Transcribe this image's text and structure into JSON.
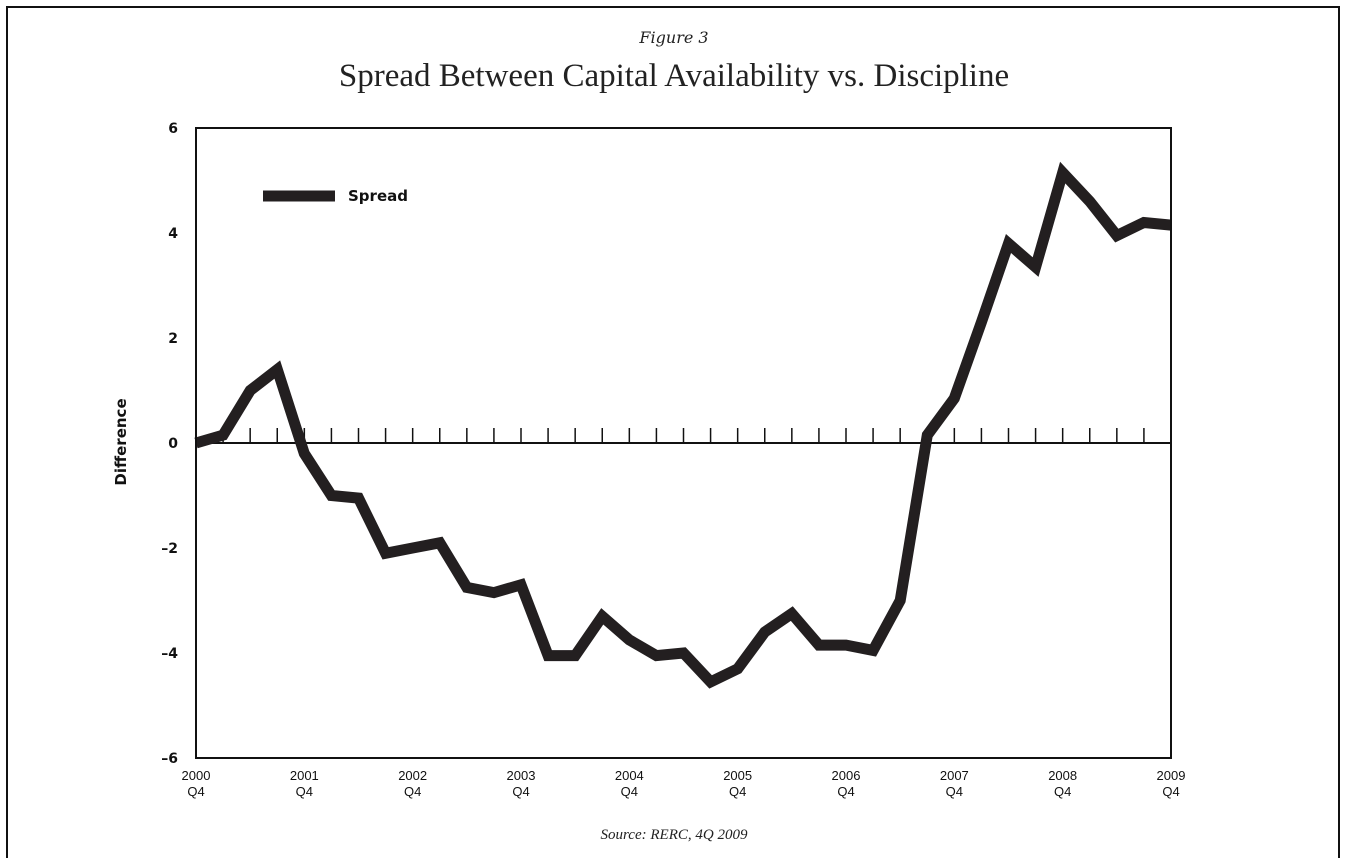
{
  "figure_label": "Figure 3",
  "source": "Source: RERC, 4Q 2009",
  "chart_data": {
    "type": "line",
    "title": "Spread Between Capital Availability vs. Discipline",
    "xlabel": "",
    "ylabel": "Difference",
    "ylim": [
      -6,
      6
    ],
    "y_ticks": [
      {
        "value": 6,
        "label": "6"
      },
      {
        "value": 4,
        "label": "4"
      },
      {
        "value": 2,
        "label": "2"
      },
      {
        "value": 0,
        "label": "0"
      },
      {
        "value": -2,
        "label": "–2"
      },
      {
        "value": -4,
        "label": "–4"
      },
      {
        "value": -6,
        "label": "–6"
      }
    ],
    "x_range": [
      "2000 Q4",
      "2009 Q4"
    ],
    "x_ticks": [
      {
        "year": "2000",
        "quarter": "Q4"
      },
      {
        "year": "2001",
        "quarter": "Q4"
      },
      {
        "year": "2002",
        "quarter": "Q4"
      },
      {
        "year": "2003",
        "quarter": "Q4"
      },
      {
        "year": "2004",
        "quarter": "Q4"
      },
      {
        "year": "2005",
        "quarter": "Q4"
      },
      {
        "year": "2006",
        "quarter": "Q4"
      },
      {
        "year": "2007",
        "quarter": "Q4"
      },
      {
        "year": "2008",
        "quarter": "Q4"
      },
      {
        "year": "2009",
        "quarter": "Q4"
      }
    ],
    "legend": {
      "placement": "top-left",
      "entries": [
        "Spread"
      ]
    },
    "grid": false,
    "line_color": "#231f20",
    "series": [
      {
        "name": "Spread",
        "x": [
          "2000 Q4",
          "2001 Q1",
          "2001 Q2",
          "2001 Q3",
          "2001 Q4",
          "2002 Q1",
          "2002 Q2",
          "2002 Q3",
          "2002 Q4",
          "2003 Q1",
          "2003 Q2",
          "2003 Q3",
          "2003 Q4",
          "2004 Q1",
          "2004 Q2",
          "2004 Q3",
          "2004 Q4",
          "2005 Q1",
          "2005 Q2",
          "2005 Q3",
          "2005 Q4",
          "2006 Q1",
          "2006 Q2",
          "2006 Q3",
          "2006 Q4",
          "2007 Q1",
          "2007 Q2",
          "2007 Q3",
          "2007 Q4",
          "2008 Q1",
          "2008 Q2",
          "2008 Q3",
          "2008 Q4",
          "2009 Q1",
          "2009 Q2",
          "2009 Q3",
          "2009 Q4"
        ],
        "values": [
          0,
          0.15,
          1.0,
          1.4,
          -0.2,
          -1.0,
          -1.05,
          -2.1,
          -2.0,
          -1.9,
          -2.75,
          -2.85,
          -2.7,
          -4.05,
          -4.05,
          -3.3,
          -3.75,
          -4.05,
          -4.0,
          -4.55,
          -4.3,
          -3.6,
          -3.25,
          -3.85,
          -3.85,
          -3.95,
          -3.0,
          0.15,
          0.85,
          2.3,
          3.8,
          3.35,
          5.15,
          4.6,
          3.95,
          4.2,
          4.15
        ]
      }
    ]
  }
}
